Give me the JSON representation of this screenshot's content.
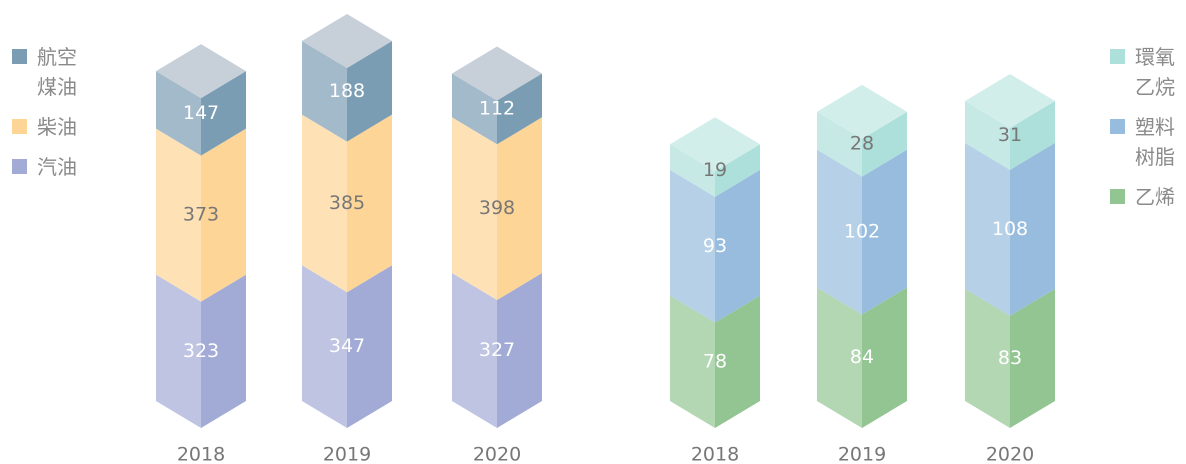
{
  "chart_data": [
    {
      "type": "bar",
      "stacked": true,
      "categories": [
        "2018",
        "2019",
        "2020"
      ],
      "series": [
        {
          "name": "汽油",
          "color": "#a2aad6",
          "values": [
            323,
            347,
            327
          ]
        },
        {
          "name": "柴油",
          "color": "#fdd597",
          "values": [
            373,
            385,
            398
          ]
        },
        {
          "name": "航空煤油",
          "color": "#7b9db4",
          "values": [
            147,
            188,
            112
          ]
        }
      ]
    },
    {
      "type": "bar",
      "stacked": true,
      "categories": [
        "2018",
        "2019",
        "2020"
      ],
      "series": [
        {
          "name": "乙烯",
          "color": "#93c592",
          "values": [
            78,
            84,
            83
          ]
        },
        {
          "name": "塑料树脂",
          "color": "#97bcdd",
          "values": [
            93,
            102,
            108
          ]
        },
        {
          "name": "環氧乙烷",
          "color": "#ade0da",
          "values": [
            19,
            28,
            31
          ]
        }
      ]
    }
  ]
}
